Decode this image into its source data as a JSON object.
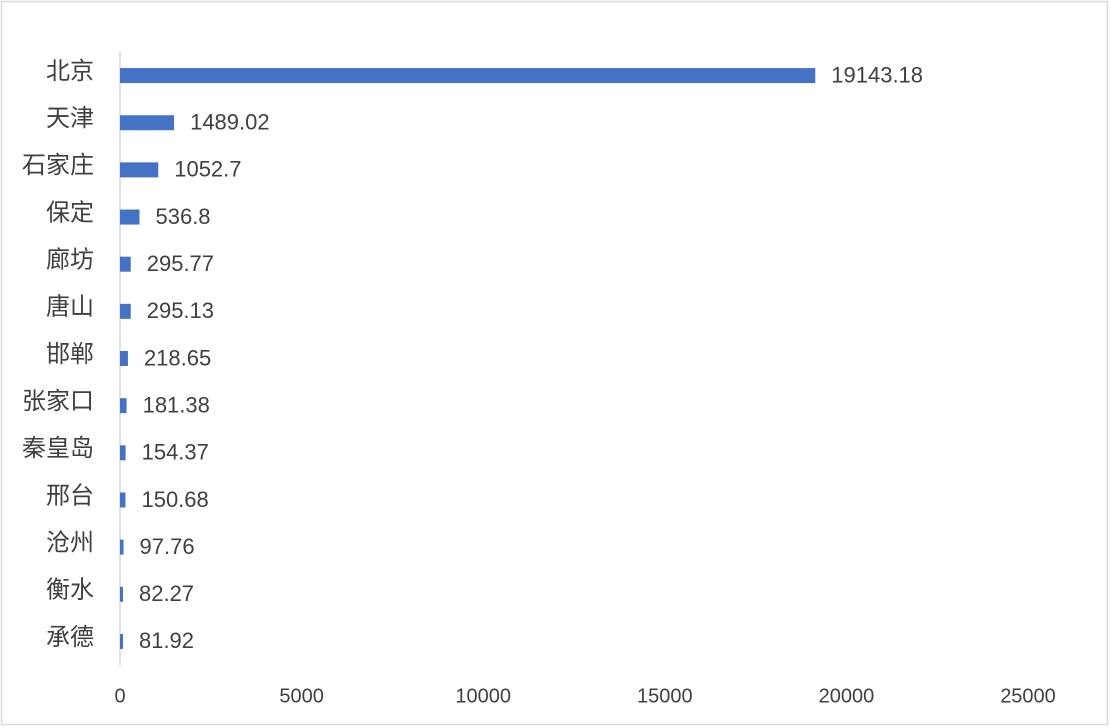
{
  "chart_data": {
    "type": "hbar",
    "categories": [
      "北京",
      "天津",
      "石家庄",
      "保定",
      "廊坊",
      "唐山",
      "邯郸",
      "张家口",
      "秦皇岛",
      "邢台",
      "沧州",
      "衡水",
      "承德"
    ],
    "values": [
      19143.18,
      1489.02,
      1052.7,
      536.8,
      295.77,
      295.13,
      218.65,
      181.38,
      154.37,
      150.68,
      97.76,
      82.27,
      81.92
    ],
    "color": "#4472c4",
    "xlim": [
      0,
      25000
    ],
    "xticks": [
      0,
      5000,
      10000,
      15000,
      20000,
      25000
    ],
    "grid": false
  }
}
